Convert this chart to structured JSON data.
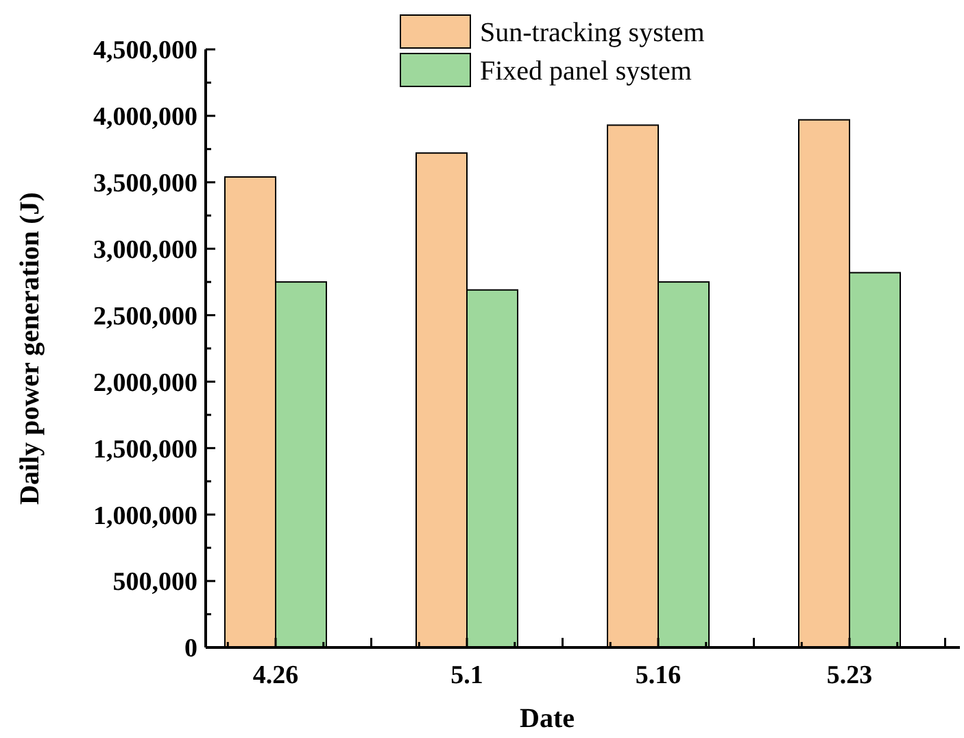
{
  "chart_data": {
    "type": "bar",
    "xlabel": "Date",
    "ylabel": "Daily power generation (J)",
    "categories": [
      "4.26",
      "5.1",
      "5.16",
      "5.23"
    ],
    "series": [
      {
        "name": "Sun-tracking system",
        "color": "#f9c795",
        "values": [
          3540000,
          3720000,
          3930000,
          3970000
        ]
      },
      {
        "name": "Fixed panel system",
        "color": "#9ed89c",
        "values": [
          2750000,
          2690000,
          2750000,
          2820000
        ]
      }
    ],
    "ylim": [
      0,
      4500000
    ],
    "yticks": [
      {
        "value": 0,
        "label": "0"
      },
      {
        "value": 250000,
        "label": null
      },
      {
        "value": 500000,
        "label": "500,000"
      },
      {
        "value": 750000,
        "label": null
      },
      {
        "value": 1000000,
        "label": "1,000,000"
      },
      {
        "value": 1250000,
        "label": null
      },
      {
        "value": 1500000,
        "label": "1,500,000"
      },
      {
        "value": 1750000,
        "label": null
      },
      {
        "value": 2000000,
        "label": "2,000,000"
      },
      {
        "value": 2250000,
        "label": null
      },
      {
        "value": 2500000,
        "label": "2,500,000"
      },
      {
        "value": 2750000,
        "label": null
      },
      {
        "value": 3000000,
        "label": "3,000,000"
      },
      {
        "value": 3250000,
        "label": null
      },
      {
        "value": 3500000,
        "label": "3,500,000"
      },
      {
        "value": 3750000,
        "label": null
      },
      {
        "value": 4000000,
        "label": "4,000,000"
      },
      {
        "value": 4250000,
        "label": null
      },
      {
        "value": 4500000,
        "label": "4,500,000"
      }
    ],
    "legend": "top",
    "grid": false
  }
}
